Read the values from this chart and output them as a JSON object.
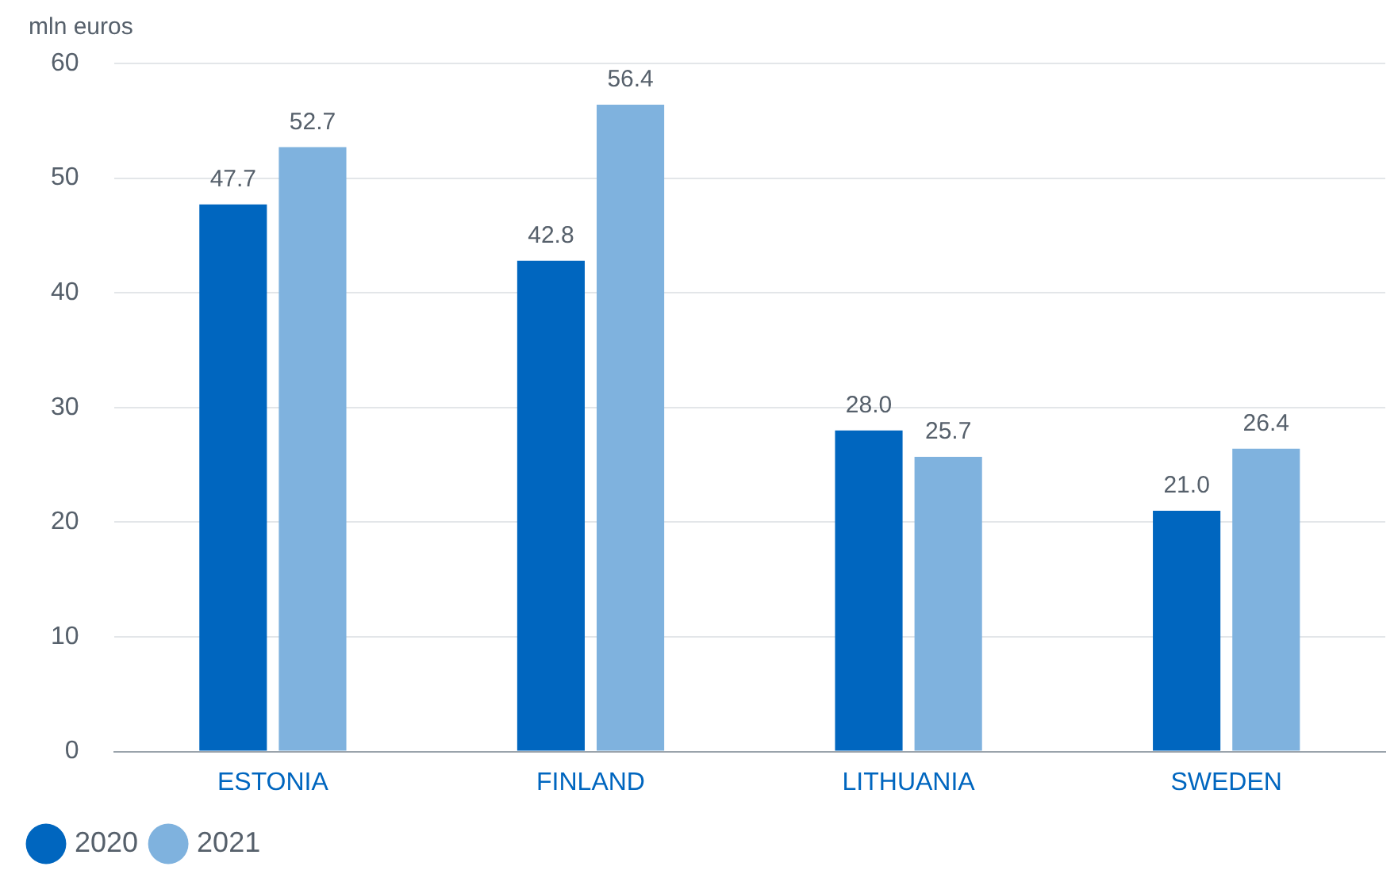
{
  "chart_data": {
    "type": "bar",
    "ylabel": "mln euros",
    "categories": [
      "ESTONIA",
      "FINLAND",
      "LITHUANIA",
      "SWEDEN"
    ],
    "series": [
      {
        "name": "2020",
        "color": "#0066bf",
        "values": [
          47.7,
          42.8,
          28.0,
          21.0
        ],
        "value_labels": [
          "47.7",
          "42.8",
          "28.0",
          "21.0"
        ]
      },
      {
        "name": "2021",
        "color": "#7fb2de",
        "values": [
          52.7,
          56.4,
          25.7,
          26.4
        ],
        "value_labels": [
          "52.7",
          "56.4",
          "25.7",
          "26.4"
        ]
      }
    ],
    "ylim": [
      0,
      60
    ],
    "yticks": [
      0,
      10,
      20,
      30,
      40,
      50,
      60
    ],
    "grid": "y",
    "legend": "bottom left"
  }
}
